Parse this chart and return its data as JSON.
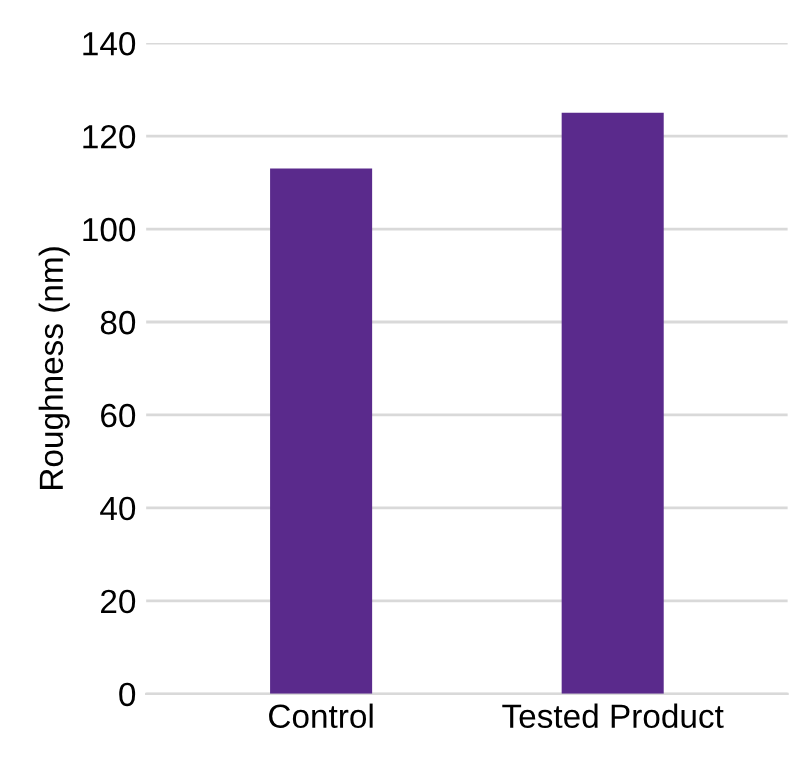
{
  "chart_data": {
    "type": "bar",
    "ylabel": "Roughness (nm)",
    "categories": [
      "Control",
      "Tested Product"
    ],
    "values": [
      113,
      125
    ],
    "color": "#5a2a8c",
    "ylim": [
      0,
      140
    ],
    "yticks": [
      0,
      20,
      40,
      60,
      80,
      100,
      120,
      140
    ],
    "grid": "y"
  }
}
